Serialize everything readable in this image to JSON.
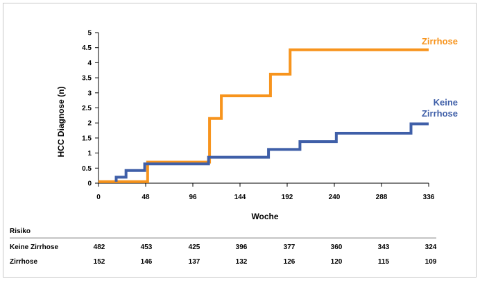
{
  "chart_data": {
    "type": "line",
    "step": true,
    "xlabel": "Woche",
    "ylabel": "HCC Diagnose (n)",
    "xlim": [
      0,
      336
    ],
    "ylim": [
      0,
      5
    ],
    "x_ticks": [
      "0",
      "48",
      "96",
      "144",
      "192",
      "240",
      "288",
      "336"
    ],
    "y_ticks": [
      "0",
      "0.5",
      "1",
      "1.5",
      "2",
      "2.5",
      "3",
      "3.5",
      "4",
      "4.5",
      "5"
    ],
    "grid": false,
    "series": [
      {
        "name": "Zirrhose",
        "color": "#f7941d",
        "points": [
          [
            0,
            0.05
          ],
          [
            50,
            0.05
          ],
          [
            50,
            0.7
          ],
          [
            113,
            0.7
          ],
          [
            113,
            2.15
          ],
          [
            125,
            2.15
          ],
          [
            125,
            2.9
          ],
          [
            175,
            2.9
          ],
          [
            175,
            3.62
          ],
          [
            195,
            3.62
          ],
          [
            195,
            4.43
          ],
          [
            336,
            4.43
          ]
        ]
      },
      {
        "name": "Keine Zirrhose",
        "name_lines": [
          "Keine",
          "Zirrhose"
        ],
        "color": "#3f5fa8",
        "points": [
          [
            18,
            0.05
          ],
          [
            18,
            0.2
          ],
          [
            28,
            0.2
          ],
          [
            28,
            0.42
          ],
          [
            47,
            0.42
          ],
          [
            47,
            0.64
          ],
          [
            112,
            0.64
          ],
          [
            112,
            0.86
          ],
          [
            173,
            0.86
          ],
          [
            173,
            1.12
          ],
          [
            205,
            1.12
          ],
          [
            205,
            1.38
          ],
          [
            242,
            1.38
          ],
          [
            242,
            1.66
          ],
          [
            318,
            1.66
          ],
          [
            318,
            1.97
          ],
          [
            336,
            1.97
          ]
        ]
      }
    ]
  },
  "risk_table": {
    "title": "Risiko",
    "rows": [
      {
        "label": "Keine Zirrhose",
        "values": [
          "482",
          "453",
          "425",
          "396",
          "377",
          "360",
          "343",
          "324"
        ]
      },
      {
        "label": "Zirrhose",
        "values": [
          "152",
          "146",
          "137",
          "132",
          "126",
          "120",
          "115",
          "109"
        ]
      }
    ]
  }
}
